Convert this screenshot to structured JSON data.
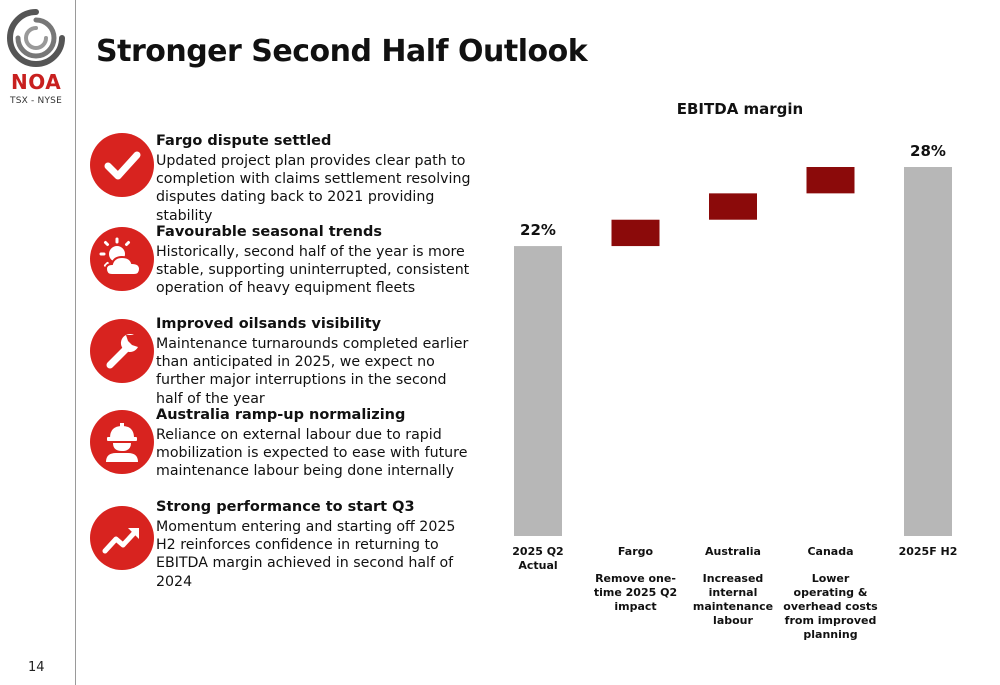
{
  "brand": {
    "name": "NOA",
    "exchanges": "TSX - NYSE",
    "colors": {
      "red": "#c8201f",
      "ring": "#555555"
    }
  },
  "page": {
    "title": "Stronger Second Half Outlook",
    "number": "14"
  },
  "items": [
    {
      "icon": "checkmark-icon",
      "title": "Fargo dispute settled",
      "body": "Updated project plan provides clear path to completion with claims settlement resolving disputes dating back to 2021 providing stability"
    },
    {
      "icon": "sun-cloud-icon",
      "title": "Favourable seasonal trends",
      "body": "Historically, second half of the year is more stable, supporting uninterrupted, consistent operation of heavy equipment fleets"
    },
    {
      "icon": "wrench-icon",
      "title": "Improved oilsands visibility",
      "body": "Maintenance turnarounds completed earlier than anticipated in 2025, we expect no further major interruptions in the second half of the year"
    },
    {
      "icon": "hard-hat-worker-icon",
      "title": "Australia ramp-up normalizing",
      "body": "Reliance on external labour due to rapid mobilization is expected to ease with future maintenance labour being done internally"
    },
    {
      "icon": "trending-up-icon",
      "title": "Strong performance to start Q3",
      "body": "Momentum entering and starting off 2025 H2 reinforces confidence in returning to EBITDA margin achieved in second half of 2024"
    }
  ],
  "chart_data": {
    "type": "bar",
    "subtype": "waterfall",
    "title": "EBITDA margin",
    "categories": [
      "2025 Q2\nActual",
      "Fargo",
      "Australia",
      "Canada",
      "2025F H2"
    ],
    "descriptions": [
      "",
      "Remove one-time 2025 Q2 impact",
      "Increased internal maintenance labour",
      "Lower operating & overhead costs from improved planning",
      ""
    ],
    "values": [
      22,
      2,
      2,
      2,
      28
    ],
    "kinds": [
      "total",
      "increase",
      "increase",
      "increase",
      "total"
    ],
    "data_labels": [
      "22%",
      "",
      "",
      "",
      "28%"
    ],
    "ylim": [
      0,
      28
    ],
    "grid": false,
    "colors": {
      "total": "#b7b7b7",
      "increase": "#8b0a0a"
    }
  }
}
